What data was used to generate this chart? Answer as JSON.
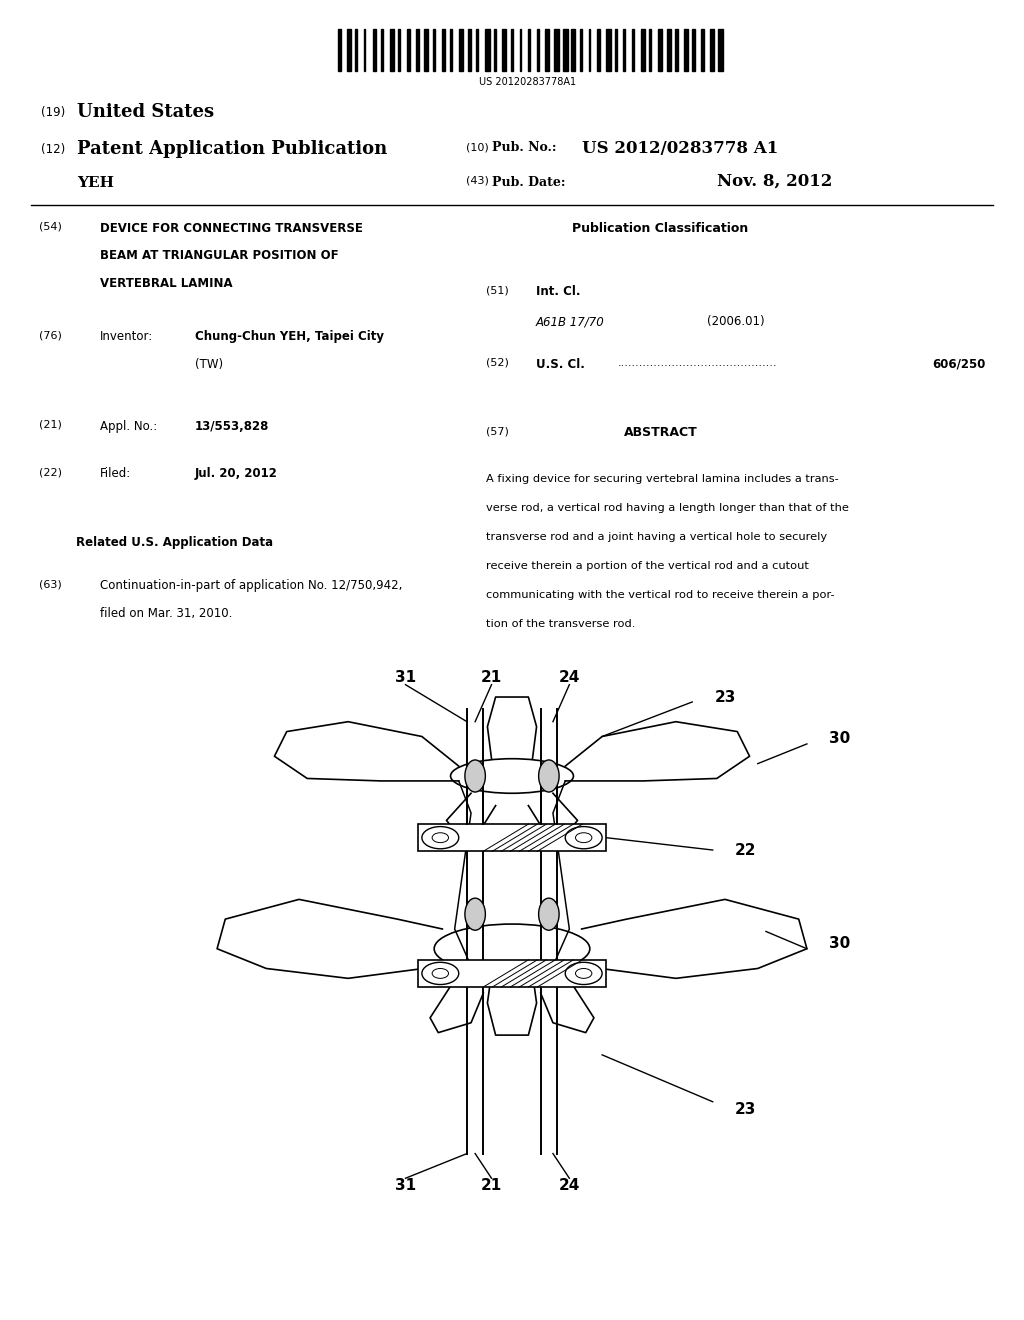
{
  "background_color": "#ffffff",
  "barcode_text": "US 20120283778A1",
  "header": {
    "number_19": "(19)",
    "united_states": "United States",
    "number_12": "(12)",
    "patent_app_pub": "Patent Application Publication",
    "yeh": "YEH",
    "number_10": "(10)",
    "pub_no_label": "Pub. No.:",
    "pub_no_value": "US 2012/0283778 A1",
    "number_43": "(43)",
    "pub_date_label": "Pub. Date:",
    "pub_date_value": "Nov. 8, 2012"
  },
  "left_col": {
    "item54_num": "(54)",
    "item54_title": "DEVICE FOR CONNECTING TRANSVERSE\nBEAM AT TRIANGULAR POSITION OF\nVERTEBRAL LAMINA",
    "item76_num": "(76)",
    "item76_label": "Inventor:",
    "item76_value": "Chung-Chun YEH, Taipei City\n(TW)",
    "item21_num": "(21)",
    "item21_label": "Appl. No.:",
    "item21_value": "13/553,828",
    "item22_num": "(22)",
    "item22_label": "Filed:",
    "item22_value": "Jul. 20, 2012",
    "related_data_header": "Related U.S. Application Data",
    "item63_num": "(63)",
    "item63_value": "Continuation-in-part of application No. 12/750,942,\nfiled on Mar. 31, 2010."
  },
  "right_col": {
    "pub_class_header": "Publication Classification",
    "item51_num": "(51)",
    "item51_label": "Int. Cl.",
    "item51_class": "A61B 17/70",
    "item51_year": "(2006.01)",
    "item52_num": "(52)",
    "item52_label": "U.S. Cl.",
    "item52_value": "606/250",
    "item57_num": "(57)",
    "item57_header": "ABSTRACT",
    "item57_text": "A fixing device for securing vertebral lamina includes a trans-\nverse rod, a vertical rod having a length longer than that of the\ntransverse rod and a joint having a vertical hole to securely\nreceive therein a portion of the vertical rod and a cutout\ncommunicating with the vertical rod to receive therein a por-\ntion of the transverse rod."
  }
}
